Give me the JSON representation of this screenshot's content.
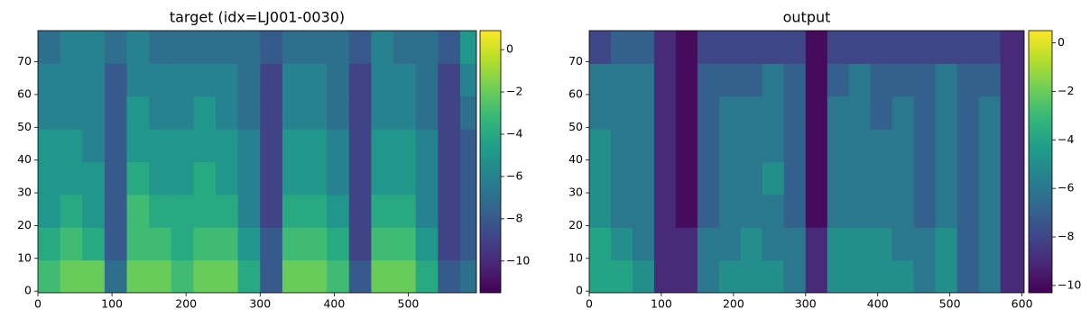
{
  "chart_data": [
    {
      "type": "heatmap",
      "title": "target (idx=LJ001-0030)",
      "x_edges": [
        0,
        30,
        60,
        90,
        120,
        150,
        180,
        210,
        240,
        270,
        300,
        330,
        360,
        390,
        420,
        450,
        480,
        510,
        540,
        570,
        592
      ],
      "y_edges": [
        -0.5,
        9.5,
        19.5,
        29.5,
        39.5,
        49.5,
        59.5,
        69.5,
        79.5
      ],
      "z": [
        [
          -3,
          -2,
          -2,
          -7,
          -2,
          -2,
          -3,
          -2,
          -2,
          -4,
          -8,
          -2,
          -2,
          -3,
          -8,
          -2,
          -2,
          -4,
          -8,
          -7
        ],
        [
          -4,
          -3,
          -4,
          -8,
          -3,
          -3,
          -4,
          -3,
          -3,
          -5,
          -8,
          -3,
          -3,
          -4,
          -9,
          -3,
          -3,
          -5,
          -9,
          -8
        ],
        [
          -5,
          -4,
          -5,
          -8,
          -3,
          -4,
          -4,
          -4,
          -4,
          -6,
          -9,
          -4,
          -4,
          -5,
          -9,
          -4,
          -4,
          -6,
          -9,
          -8
        ],
        [
          -5,
          -5,
          -5,
          -8,
          -4,
          -5,
          -5,
          -4,
          -5,
          -6,
          -9,
          -5,
          -5,
          -6,
          -9,
          -5,
          -5,
          -6,
          -9,
          -8
        ],
        [
          -5,
          -5,
          -6,
          -8,
          -5,
          -5,
          -5,
          -5,
          -5,
          -6,
          -9,
          -5,
          -5,
          -6,
          -9,
          -5,
          -5,
          -6,
          -9,
          -8
        ],
        [
          -6,
          -6,
          -6,
          -8,
          -5,
          -6,
          -6,
          -5,
          -6,
          -7,
          -9,
          -6,
          -6,
          -7,
          -9,
          -6,
          -6,
          -7,
          -9,
          -7
        ],
        [
          -6,
          -6,
          -6,
          -8,
          -6,
          -6,
          -6,
          -6,
          -6,
          -7,
          -9,
          -6,
          -6,
          -7,
          -9,
          -6,
          -6,
          -7,
          -9,
          -6
        ],
        [
          -7,
          -6,
          -6,
          -7,
          -6,
          -7,
          -7,
          -7,
          -7,
          -7,
          -8,
          -7,
          -7,
          -7,
          -8,
          -6,
          -7,
          -7,
          -8,
          -5
        ]
      ],
      "xlim": [
        0,
        592
      ],
      "ylim": [
        -0.5,
        79.5
      ],
      "xticks": [
        0,
        100,
        200,
        300,
        400,
        500
      ],
      "yticks": [
        0,
        10,
        20,
        30,
        40,
        50,
        60,
        70
      ],
      "clim": [
        -11.5,
        0.9
      ],
      "cticks": [
        0,
        {
          "value": -2,
          "label": "−2"
        },
        {
          "value": -4,
          "label": "−4"
        },
        {
          "value": -6,
          "label": "−6"
        },
        {
          "value": -8,
          "label": "−8"
        },
        {
          "value": -10,
          "label": "−10"
        }
      ],
      "colormap": [
        "#440154",
        "#482878",
        "#3e4989",
        "#31688e",
        "#26828e",
        "#1f9e89",
        "#35b779",
        "#6ece58",
        "#b5de2b",
        "#fde725"
      ]
    },
    {
      "type": "heatmap",
      "title": "output",
      "x_edges": [
        0,
        30,
        60,
        90,
        120,
        150,
        180,
        210,
        240,
        270,
        300,
        330,
        360,
        390,
        420,
        450,
        480,
        510,
        540,
        570,
        603
      ],
      "y_edges": [
        -0.5,
        9.5,
        19.5,
        29.5,
        39.5,
        49.5,
        59.5,
        69.5,
        79.5
      ],
      "z": [
        [
          -4,
          -4,
          -5,
          -9,
          -9,
          -6,
          -5,
          -5,
          -5,
          -6,
          -9,
          -5,
          -5,
          -5,
          -5,
          -6,
          -5,
          -7,
          -6,
          -9
        ],
        [
          -4,
          -5,
          -6,
          -9,
          -9,
          -6,
          -6,
          -5,
          -6,
          -6,
          -9,
          -5,
          -5,
          -5,
          -6,
          -6,
          -5,
          -7,
          -6,
          -9
        ],
        [
          -5,
          -6,
          -6,
          -9,
          -10,
          -7,
          -6,
          -6,
          -6,
          -7,
          -10,
          -6,
          -6,
          -6,
          -6,
          -7,
          -6,
          -7,
          -6,
          -9
        ],
        [
          -5,
          -6,
          -6,
          -9,
          -10,
          -7,
          -6,
          -6,
          -5,
          -7,
          -10,
          -6,
          -6,
          -6,
          -6,
          -7,
          -6,
          -7,
          -6,
          -9
        ],
        [
          -5,
          -6,
          -6,
          -9,
          -10,
          -7,
          -6,
          -6,
          -6,
          -7,
          -10,
          -6,
          -6,
          -6,
          -6,
          -7,
          -6,
          -7,
          -6,
          -9
        ],
        [
          -6,
          -6,
          -6,
          -9,
          -10,
          -7,
          -6,
          -6,
          -6,
          -7,
          -10,
          -6,
          -6,
          -7,
          -6,
          -7,
          -6,
          -7,
          -6,
          -9
        ],
        [
          -6,
          -6,
          -6,
          -9,
          -10,
          -7,
          -7,
          -7,
          -6,
          -7,
          -10,
          -7,
          -6,
          -7,
          -7,
          -7,
          -6,
          -7,
          -7,
          -9
        ],
        [
          -8,
          -7,
          -7,
          -9,
          -10,
          -8,
          -8,
          -8,
          -8,
          -8,
          -10,
          -8,
          -8,
          -8,
          -8,
          -8,
          -8,
          -8,
          -8,
          -9
        ]
      ],
      "xlim": [
        0,
        603
      ],
      "ylim": [
        -0.5,
        79.5
      ],
      "xticks": [
        0,
        100,
        200,
        300,
        400,
        500,
        600
      ],
      "yticks": [
        0,
        10,
        20,
        30,
        40,
        50,
        60,
        70
      ],
      "clim": [
        -10.3,
        0.5
      ],
      "cticks": [
        0,
        {
          "value": -2,
          "label": "−2"
        },
        {
          "value": -4,
          "label": "−4"
        },
        {
          "value": -6,
          "label": "−6"
        },
        {
          "value": -8,
          "label": "−8"
        },
        {
          "value": -10,
          "label": "−10"
        }
      ],
      "colormap": [
        "#440154",
        "#482878",
        "#3e4989",
        "#31688e",
        "#26828e",
        "#1f9e89",
        "#35b779",
        "#6ece58",
        "#b5de2b",
        "#fde725"
      ]
    }
  ]
}
